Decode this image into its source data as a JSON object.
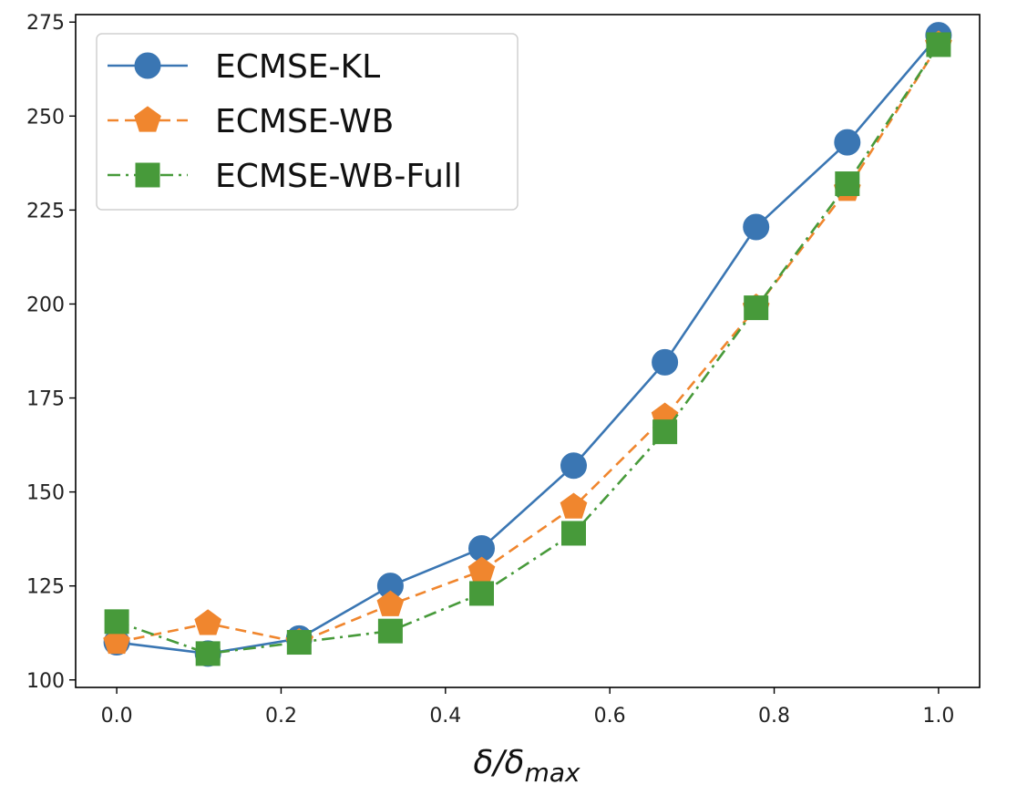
{
  "chart_data": {
    "type": "line",
    "title": "",
    "xlabel": "δ/δ",
    "xlabel_subscript": "max",
    "ylabel": "",
    "xlim": [
      -0.05,
      1.05
    ],
    "ylim": [
      98,
      277
    ],
    "xticks": [
      0.0,
      0.2,
      0.4,
      0.6,
      0.8,
      1.0
    ],
    "xtick_labels": [
      "0.0",
      "0.2",
      "0.4",
      "0.6",
      "0.8",
      "1.0"
    ],
    "yticks": [
      100,
      125,
      150,
      175,
      200,
      225,
      250,
      275
    ],
    "ytick_labels": [
      "100",
      "125",
      "150",
      "175",
      "200",
      "225",
      "250",
      "275"
    ],
    "grid": false,
    "legend_position": "top-left",
    "x": [
      0.0,
      0.111,
      0.222,
      0.333,
      0.444,
      0.556,
      0.667,
      0.778,
      0.889,
      1.0
    ],
    "series": [
      {
        "name": "ECMSE-KL",
        "color": "#3a76b3",
        "linestyle": "solid",
        "marker": "circle",
        "values": [
          110,
          107,
          111,
          125,
          135,
          157,
          184.5,
          220.5,
          243,
          271.5
        ]
      },
      {
        "name": "ECMSE-WB",
        "color": "#f0862e",
        "linestyle": "dashed",
        "marker": "pentagon",
        "values": [
          110,
          115,
          110,
          120,
          129,
          146,
          170,
          199,
          230.5,
          269
        ]
      },
      {
        "name": "ECMSE-WB-Full",
        "color": "#479a3a",
        "linestyle": "dashdot",
        "marker": "square",
        "values": [
          115.5,
          107,
          110,
          113,
          123,
          139,
          166,
          199,
          232,
          269
        ]
      }
    ]
  }
}
